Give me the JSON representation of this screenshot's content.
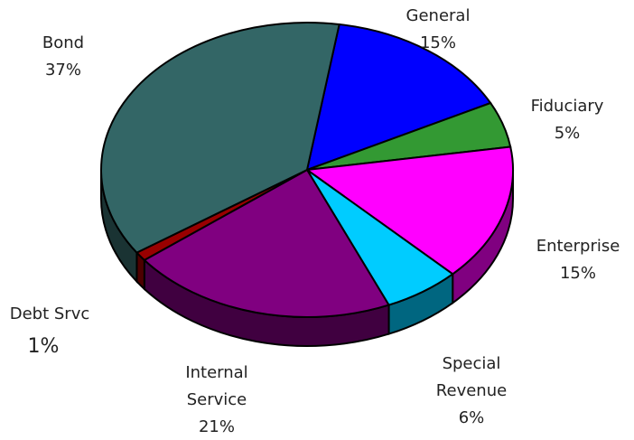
{
  "chart_data": {
    "type": "pie",
    "categories": [
      "General",
      "Fiduciary",
      "Enterprise",
      "Special Revenue",
      "Internal Service",
      "Debt Srvc",
      "Bond"
    ],
    "values": [
      15,
      5,
      15,
      6,
      21,
      1,
      37
    ],
    "value_labels": [
      "15%",
      "5%",
      "15%",
      "6%",
      "21%",
      "1%",
      "37%"
    ],
    "colors": [
      "#0000ff",
      "#339933",
      "#ff00ff",
      "#00ccff",
      "#800080",
      "#990000",
      "#336666"
    ]
  }
}
